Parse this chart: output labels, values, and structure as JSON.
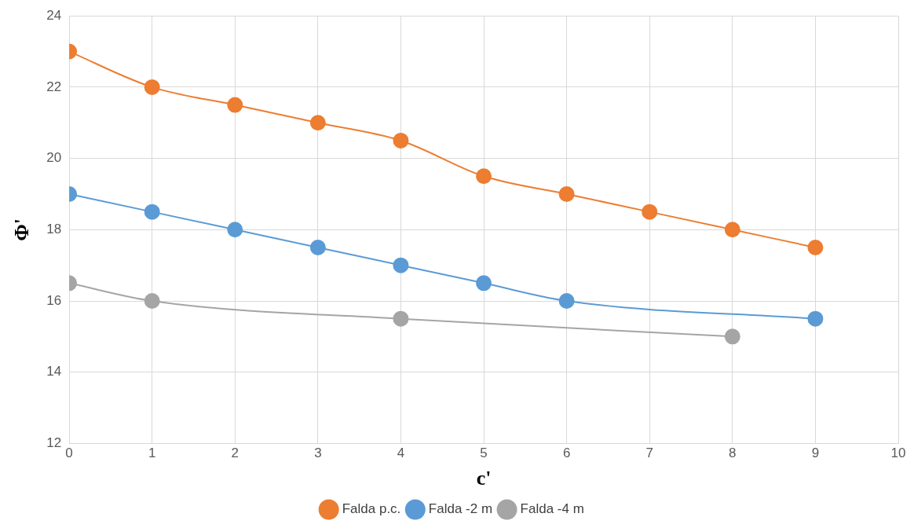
{
  "chart_data": {
    "type": "line",
    "xlabel": "c'",
    "ylabel": "Φ'",
    "xlim": [
      0,
      10
    ],
    "xticks": [
      0,
      1,
      2,
      3,
      4,
      5,
      6,
      7,
      8,
      9,
      10
    ],
    "ylim": [
      12,
      24
    ],
    "yticks": [
      12,
      14,
      16,
      18,
      20,
      22,
      24
    ],
    "grid": true,
    "legend": "bottom",
    "marker": "circle",
    "line_style": "solid",
    "series": [
      {
        "name": "Falda p.c.",
        "color": "#ed7d31",
        "x": [
          0,
          1,
          2,
          3,
          4,
          5,
          6,
          7,
          8,
          9
        ],
        "values": [
          23,
          22,
          21.5,
          21,
          20.5,
          19.5,
          19,
          18.5,
          18,
          17.5
        ]
      },
      {
        "name": "Falda -2 m",
        "color": "#5b9bd5",
        "x": [
          0,
          1,
          2,
          3,
          4,
          5,
          6,
          9
        ],
        "values": [
          19,
          18.5,
          18,
          17.5,
          17,
          16.5,
          16,
          15.5
        ]
      },
      {
        "name": "Falda -4 m",
        "color": "#a5a5a5",
        "x": [
          0,
          1,
          4,
          8
        ],
        "values": [
          16.5,
          16,
          15.5,
          15
        ]
      }
    ]
  }
}
